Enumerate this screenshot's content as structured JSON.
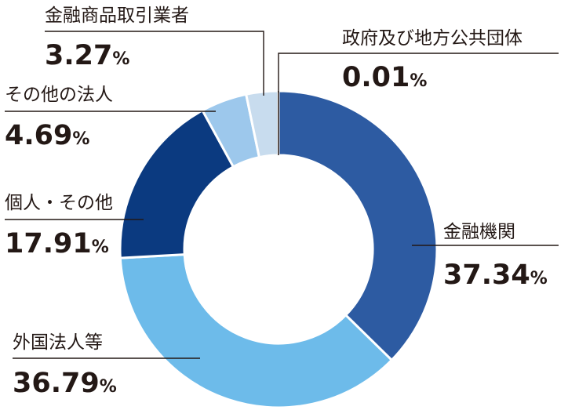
{
  "chart_data": {
    "type": "pie",
    "variant": "donut",
    "unit": "%",
    "slices": [
      {
        "label": "金融機関",
        "value": 37.34,
        "value_text": "37.34",
        "color": "#2d5ba2"
      },
      {
        "label": "外国法人等",
        "value": 36.79,
        "value_text": "36.79",
        "color": "#6dbbea"
      },
      {
        "label": "個人・その他",
        "value": 17.91,
        "value_text": "17.91",
        "color": "#0b3a80"
      },
      {
        "label": "その他の法人",
        "value": 4.69,
        "value_text": "4.69",
        "color": "#9dc8ec"
      },
      {
        "label": "金融商品取引業者",
        "value": 3.27,
        "value_text": "3.27",
        "color": "#c8dcee"
      },
      {
        "label": "政府及び地方公共団体",
        "value": 0.01,
        "value_text": "0.01",
        "color": "#000000"
      }
    ]
  }
}
